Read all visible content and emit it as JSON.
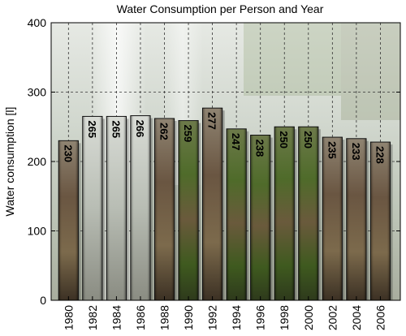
{
  "chart_data": {
    "type": "bar",
    "title": "Water Consumption per Person and Year",
    "xlabel": "",
    "ylabel": "Water consumption [l]",
    "categories": [
      "1980",
      "1982",
      "1984",
      "1986",
      "1988",
      "1990",
      "1992",
      "1994",
      "1996",
      "1998",
      "2000",
      "2002",
      "2004",
      "2006"
    ],
    "values": [
      230,
      265,
      265,
      266,
      262,
      259,
      277,
      247,
      238,
      250,
      250,
      235,
      233,
      228
    ],
    "x_ticks": [
      "1980",
      "1982",
      "1984",
      "1986",
      "1988",
      "1990",
      "1992",
      "1994",
      "1996",
      "1998",
      "2000",
      "2002",
      "2004",
      "2006"
    ],
    "y_ticks": [
      0,
      100,
      200,
      300,
      400
    ],
    "ylim": [
      0,
      400
    ],
    "grid": true,
    "background": "waterfall photograph with moss and rocks"
  }
}
